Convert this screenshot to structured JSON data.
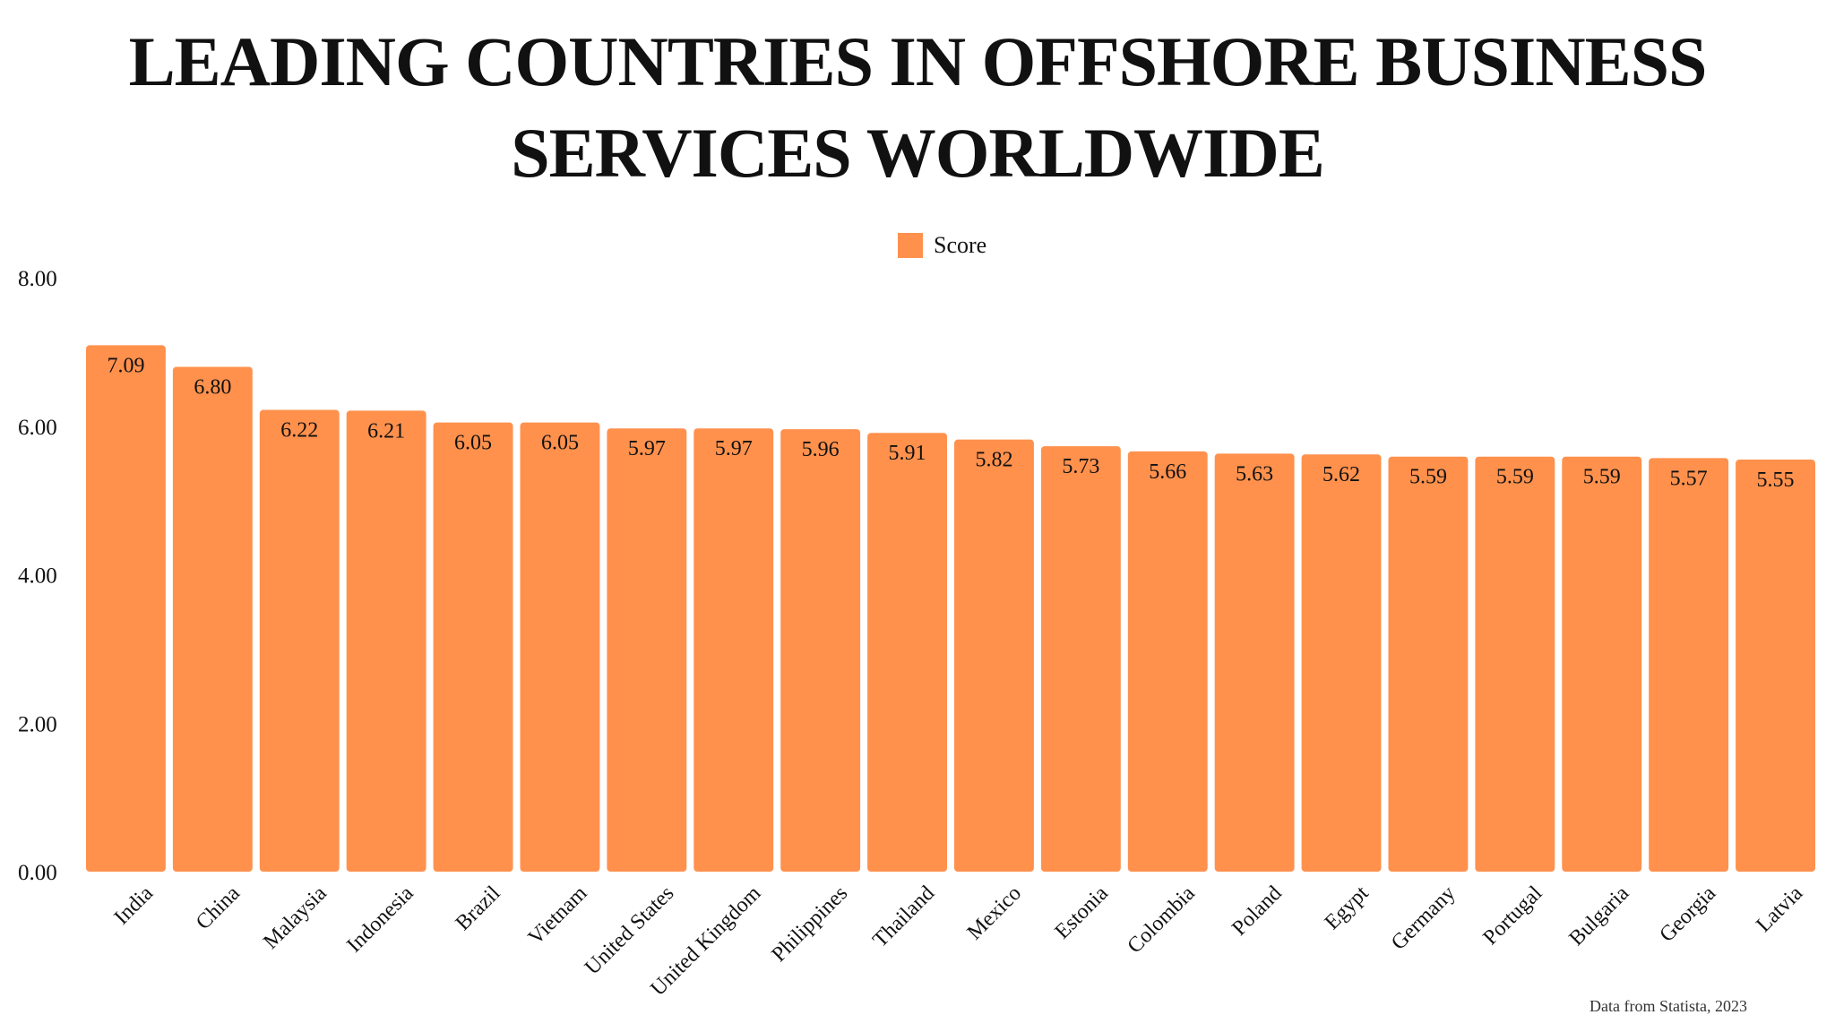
{
  "header": {
    "title_line1": "LEADING COUNTRIES IN OFFSHORE BUSINESS",
    "title_line2": "SERVICES WORLDWIDE"
  },
  "footer": {
    "source": "Data from Statista, 2023"
  },
  "colors": {
    "bar": "#FF914D",
    "text": "#111111"
  },
  "chart_data": {
    "type": "bar",
    "title": "LEADING COUNTRIES IN OFFSHORE BUSINESS SERVICES WORLDWIDE",
    "xlabel": "",
    "ylabel": "",
    "ylim": [
      0,
      8
    ],
    "yticks": [
      "0.00",
      "2.00",
      "4.00",
      "6.00",
      "8.00"
    ],
    "grid": false,
    "legend": "top-center",
    "categories": [
      "India",
      "China",
      "Malaysia",
      "Indonesia",
      "Brazil",
      "Vietnam",
      "United States",
      "United Kingdom",
      "Philippines",
      "Thailand",
      "Mexico",
      "Estonia",
      "Colombia",
      "Poland",
      "Egypt",
      "Germany",
      "Portugal",
      "Bulgaria",
      "Georgia",
      "Latvia"
    ],
    "series": [
      {
        "name": "Score",
        "values": [
          7.09,
          6.8,
          6.22,
          6.21,
          6.05,
          6.05,
          5.97,
          5.97,
          5.96,
          5.91,
          5.82,
          5.73,
          5.66,
          5.63,
          5.62,
          5.59,
          5.59,
          5.59,
          5.57,
          5.55
        ],
        "labels": [
          "7.09",
          "6.80",
          "6.22",
          "6.21",
          "6.05",
          "6.05",
          "5.97",
          "5.97",
          "5.96",
          "5.91",
          "5.82",
          "5.73",
          "5.66",
          "5.63",
          "5.62",
          "5.59",
          "5.59",
          "5.59",
          "5.57",
          "5.55"
        ]
      }
    ]
  }
}
